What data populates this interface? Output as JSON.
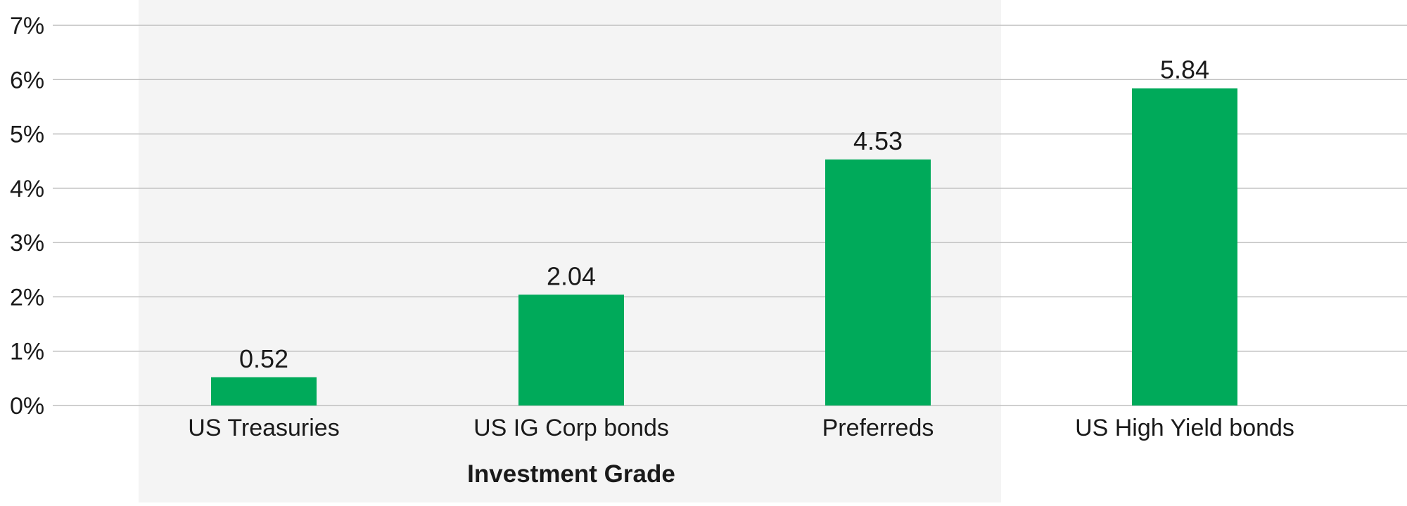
{
  "chart_data": {
    "type": "bar",
    "categories": [
      "US Treasuries",
      "US IG Corp bonds",
      "Preferreds",
      "US High Yield bonds"
    ],
    "values": [
      0.52,
      2.04,
      4.53,
      5.84
    ],
    "value_labels": [
      "0.52",
      "2.04",
      "4.53",
      "5.84"
    ],
    "title": "",
    "xlabel": "",
    "ylabel": "",
    "ylim": [
      0,
      7
    ],
    "yticks": [
      0,
      1,
      2,
      3,
      4,
      5,
      6,
      7
    ],
    "ytick_labels": [
      "0%",
      "1%",
      "2%",
      "3%",
      "4%",
      "5%",
      "6%",
      "7%"
    ],
    "grid": true,
    "group_band": {
      "label": "Investment Grade",
      "categories": [
        "US Treasuries",
        "US IG Corp bonds",
        "Preferreds"
      ]
    },
    "colors": {
      "bar": "#00AA5A",
      "band": "#F4F4F4",
      "grid": "#BFBFBF",
      "text": "#1A1A1A"
    }
  }
}
